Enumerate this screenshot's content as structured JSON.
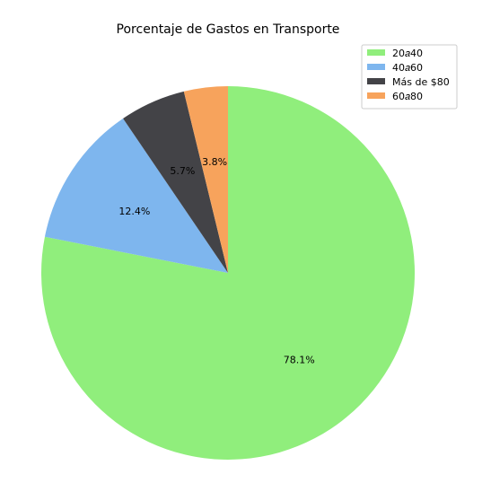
{
  "chart_data": {
    "type": "pie",
    "title": "Porcentaje de Gastos en Transporte",
    "categories": [
      "20$a$40",
      "40$a$60",
      "Más de $80",
      "60$a$80"
    ],
    "legend_labels": [
      "20𝑎40",
      "40𝑎60",
      "Más de $80",
      "60𝑎80"
    ],
    "values": [
      78.1,
      12.4,
      5.7,
      3.8
    ],
    "percent_labels": [
      "78.1%",
      "12.4%",
      "5.7%",
      "3.8%"
    ],
    "colors": [
      "#90ee7c",
      "#7eb6ee",
      "#434347",
      "#f7a35c"
    ],
    "start_angle_deg": 90,
    "direction": "clockwise",
    "legend_placement": "top-right"
  }
}
